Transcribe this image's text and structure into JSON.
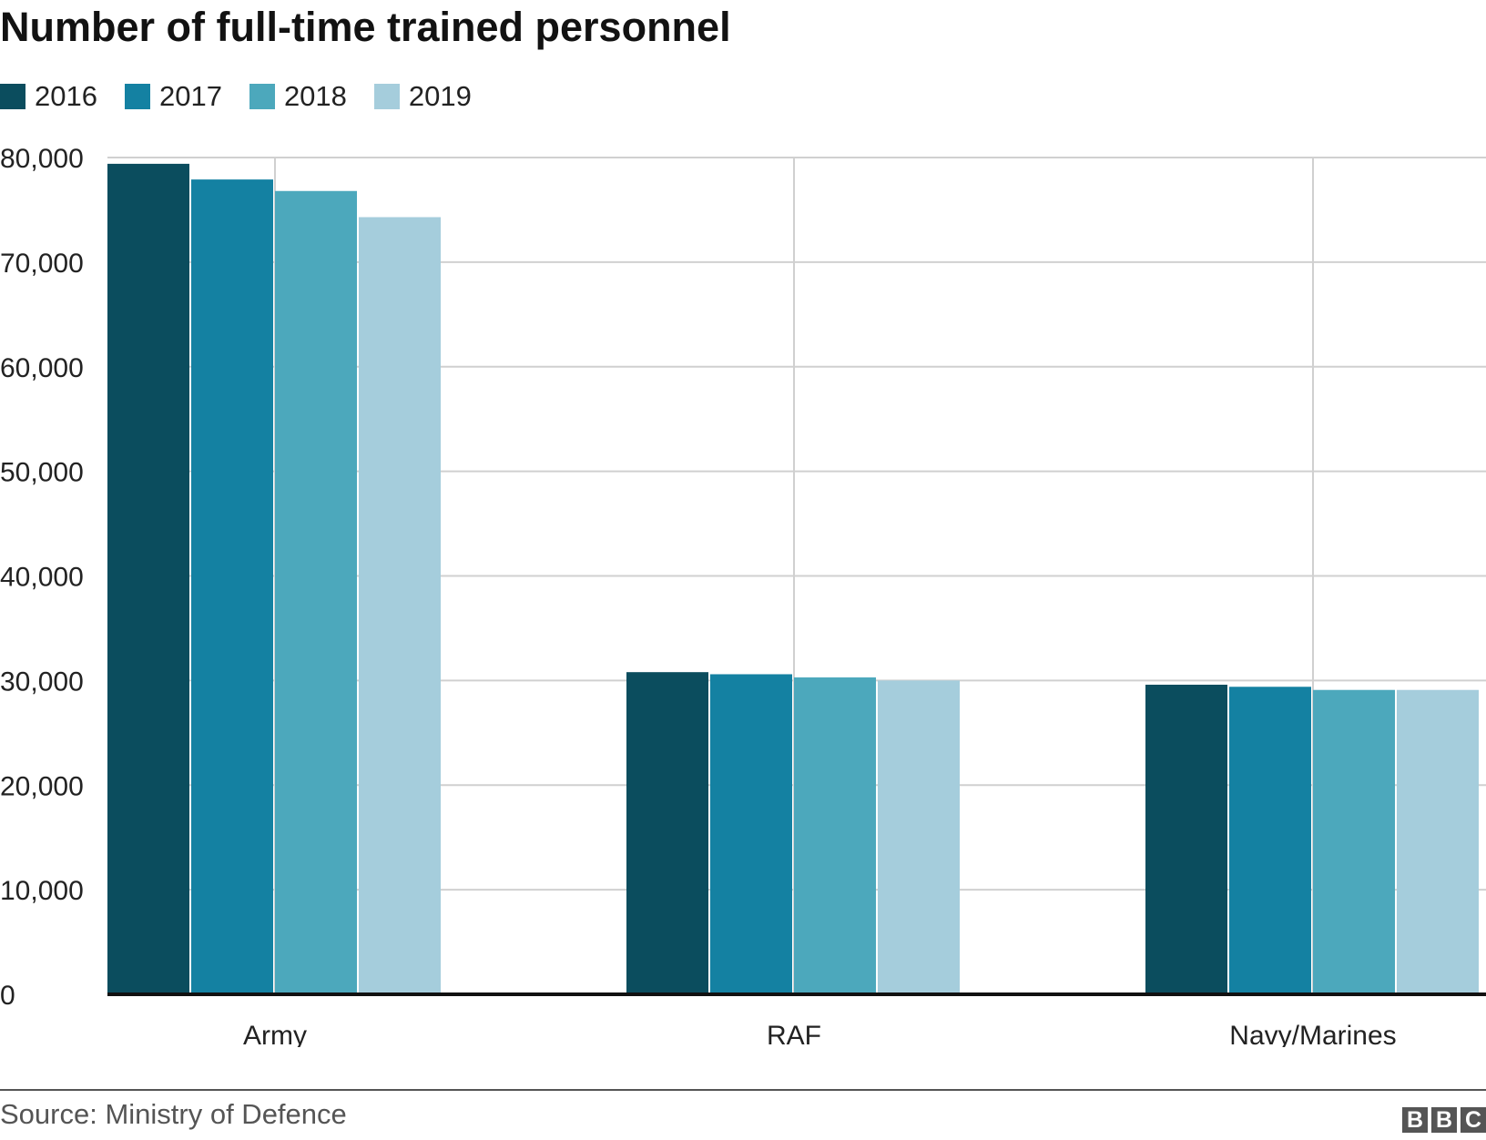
{
  "header": {
    "title": "Number of full-time trained personnel"
  },
  "legend": [
    {
      "label": "2016",
      "color": "#0b4d5e"
    },
    {
      "label": "2017",
      "color": "#1481a2"
    },
    {
      "label": "2018",
      "color": "#4ca8bc"
    },
    {
      "label": "2019",
      "color": "#a5cddc"
    }
  ],
  "chart_data": {
    "type": "bar",
    "title": "Number of full-time trained personnel",
    "xlabel": "",
    "ylabel": "",
    "categories": [
      "Army",
      "RAF",
      "Navy/Marines"
    ],
    "series": [
      {
        "name": "2016",
        "color": "#0b4d5e",
        "values": [
          79400,
          30800,
          29600
        ]
      },
      {
        "name": "2017",
        "color": "#1481a2",
        "values": [
          77900,
          30600,
          29400
        ]
      },
      {
        "name": "2018",
        "color": "#4ca8bc",
        "values": [
          76800,
          30300,
          29100
        ]
      },
      {
        "name": "2019",
        "color": "#a5cddc",
        "values": [
          74300,
          30000,
          29100
        ]
      }
    ],
    "ylim": [
      0,
      80000
    ],
    "yticks": [
      0,
      10000,
      20000,
      30000,
      40000,
      50000,
      60000,
      70000,
      80000
    ],
    "ytick_labels": [
      "0",
      "10,000",
      "20,000",
      "30,000",
      "40,000",
      "50,000",
      "60,000",
      "70,000",
      "80,000"
    ],
    "grid": true,
    "legend_position": "top-left"
  },
  "footer": {
    "source": "Source: Ministry of Defence",
    "logo": [
      "B",
      "B",
      "C"
    ]
  }
}
